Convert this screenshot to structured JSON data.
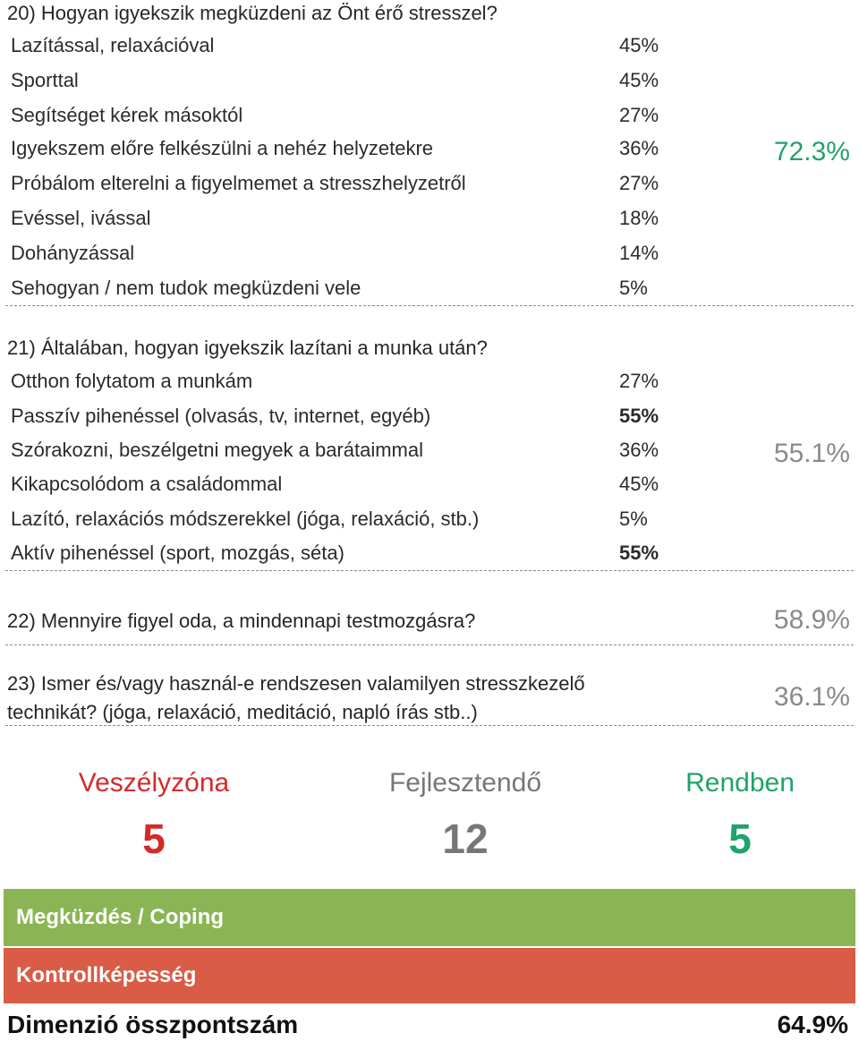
{
  "q20": {
    "title": "20) Hogyan igyekszik megküzdeni az Önt érő stresszel?",
    "options": [
      {
        "label": "Lazítással, relaxációval",
        "pct": "45%"
      },
      {
        "label": "Sporttal",
        "pct": "45%"
      },
      {
        "label": "Segítséget kérek másoktól",
        "pct": "27%"
      },
      {
        "label": "Igyekszem előre felkészülni a nehéz helyzetekre",
        "pct": "36%"
      },
      {
        "label": "Próbálom elterelni a figyelmemet a stresszhelyzetről",
        "pct": "27%"
      },
      {
        "label": "Evéssel, ivással",
        "pct": "18%"
      },
      {
        "label": "Dohányzással",
        "pct": "14%"
      },
      {
        "label": "Sehogyan / nem tudok megküzdeni vele",
        "pct": "5%"
      }
    ],
    "score": "72.3%",
    "score_color": "#1fa36a"
  },
  "q21": {
    "title": "21) Általában, hogyan igyekszik lazítani a munka után?",
    "options": [
      {
        "label": "Otthon folytatom a munkám",
        "pct": "27%",
        "bold": false
      },
      {
        "label": "Passzív pihenéssel (olvasás, tv, internet, egyéb)",
        "pct": "55%",
        "bold": true
      },
      {
        "label": "Szórakozni, beszélgetni megyek a barátaimmal",
        "pct": "36%",
        "bold": false
      },
      {
        "label": "Kikapcsolódom a családommal",
        "pct": "45%",
        "bold": false
      },
      {
        "label": "Lazító, relaxációs módszerekkel (jóga, relaxáció, stb.)",
        "pct": "5%",
        "bold": false
      },
      {
        "label": "Aktív pihenéssel (sport, mozgás, séta)",
        "pct": "55%",
        "bold": true
      }
    ],
    "score": "55.1%"
  },
  "q22": {
    "title": "22) Mennyire figyel oda, a mindennapi testmozgásra?",
    "score": "58.9%"
  },
  "q23": {
    "title_line1": "23) Ismer és/vagy használ-e rendszesen valamilyen stresszkezelő",
    "title_line2": "technikát? (jóga, relaxáció, meditáció, napló írás stb..)",
    "score": "36.1%"
  },
  "zones": [
    {
      "label": "Veszélyzóna",
      "count": "5",
      "color": "#d42a2a"
    },
    {
      "label": "Fejlesztendő",
      "count": "12",
      "color": "#777777"
    },
    {
      "label": "Rendben",
      "count": "5",
      "color": "#1fa36a"
    }
  ],
  "bars": {
    "coping": {
      "label": "Megküzdés / Coping",
      "color": "#8bb554"
    },
    "control": {
      "label": "Kontrollképesség",
      "color": "#d95c46"
    }
  },
  "total": {
    "label": "Dimenzió összpontszám",
    "value": "64.9%"
  }
}
